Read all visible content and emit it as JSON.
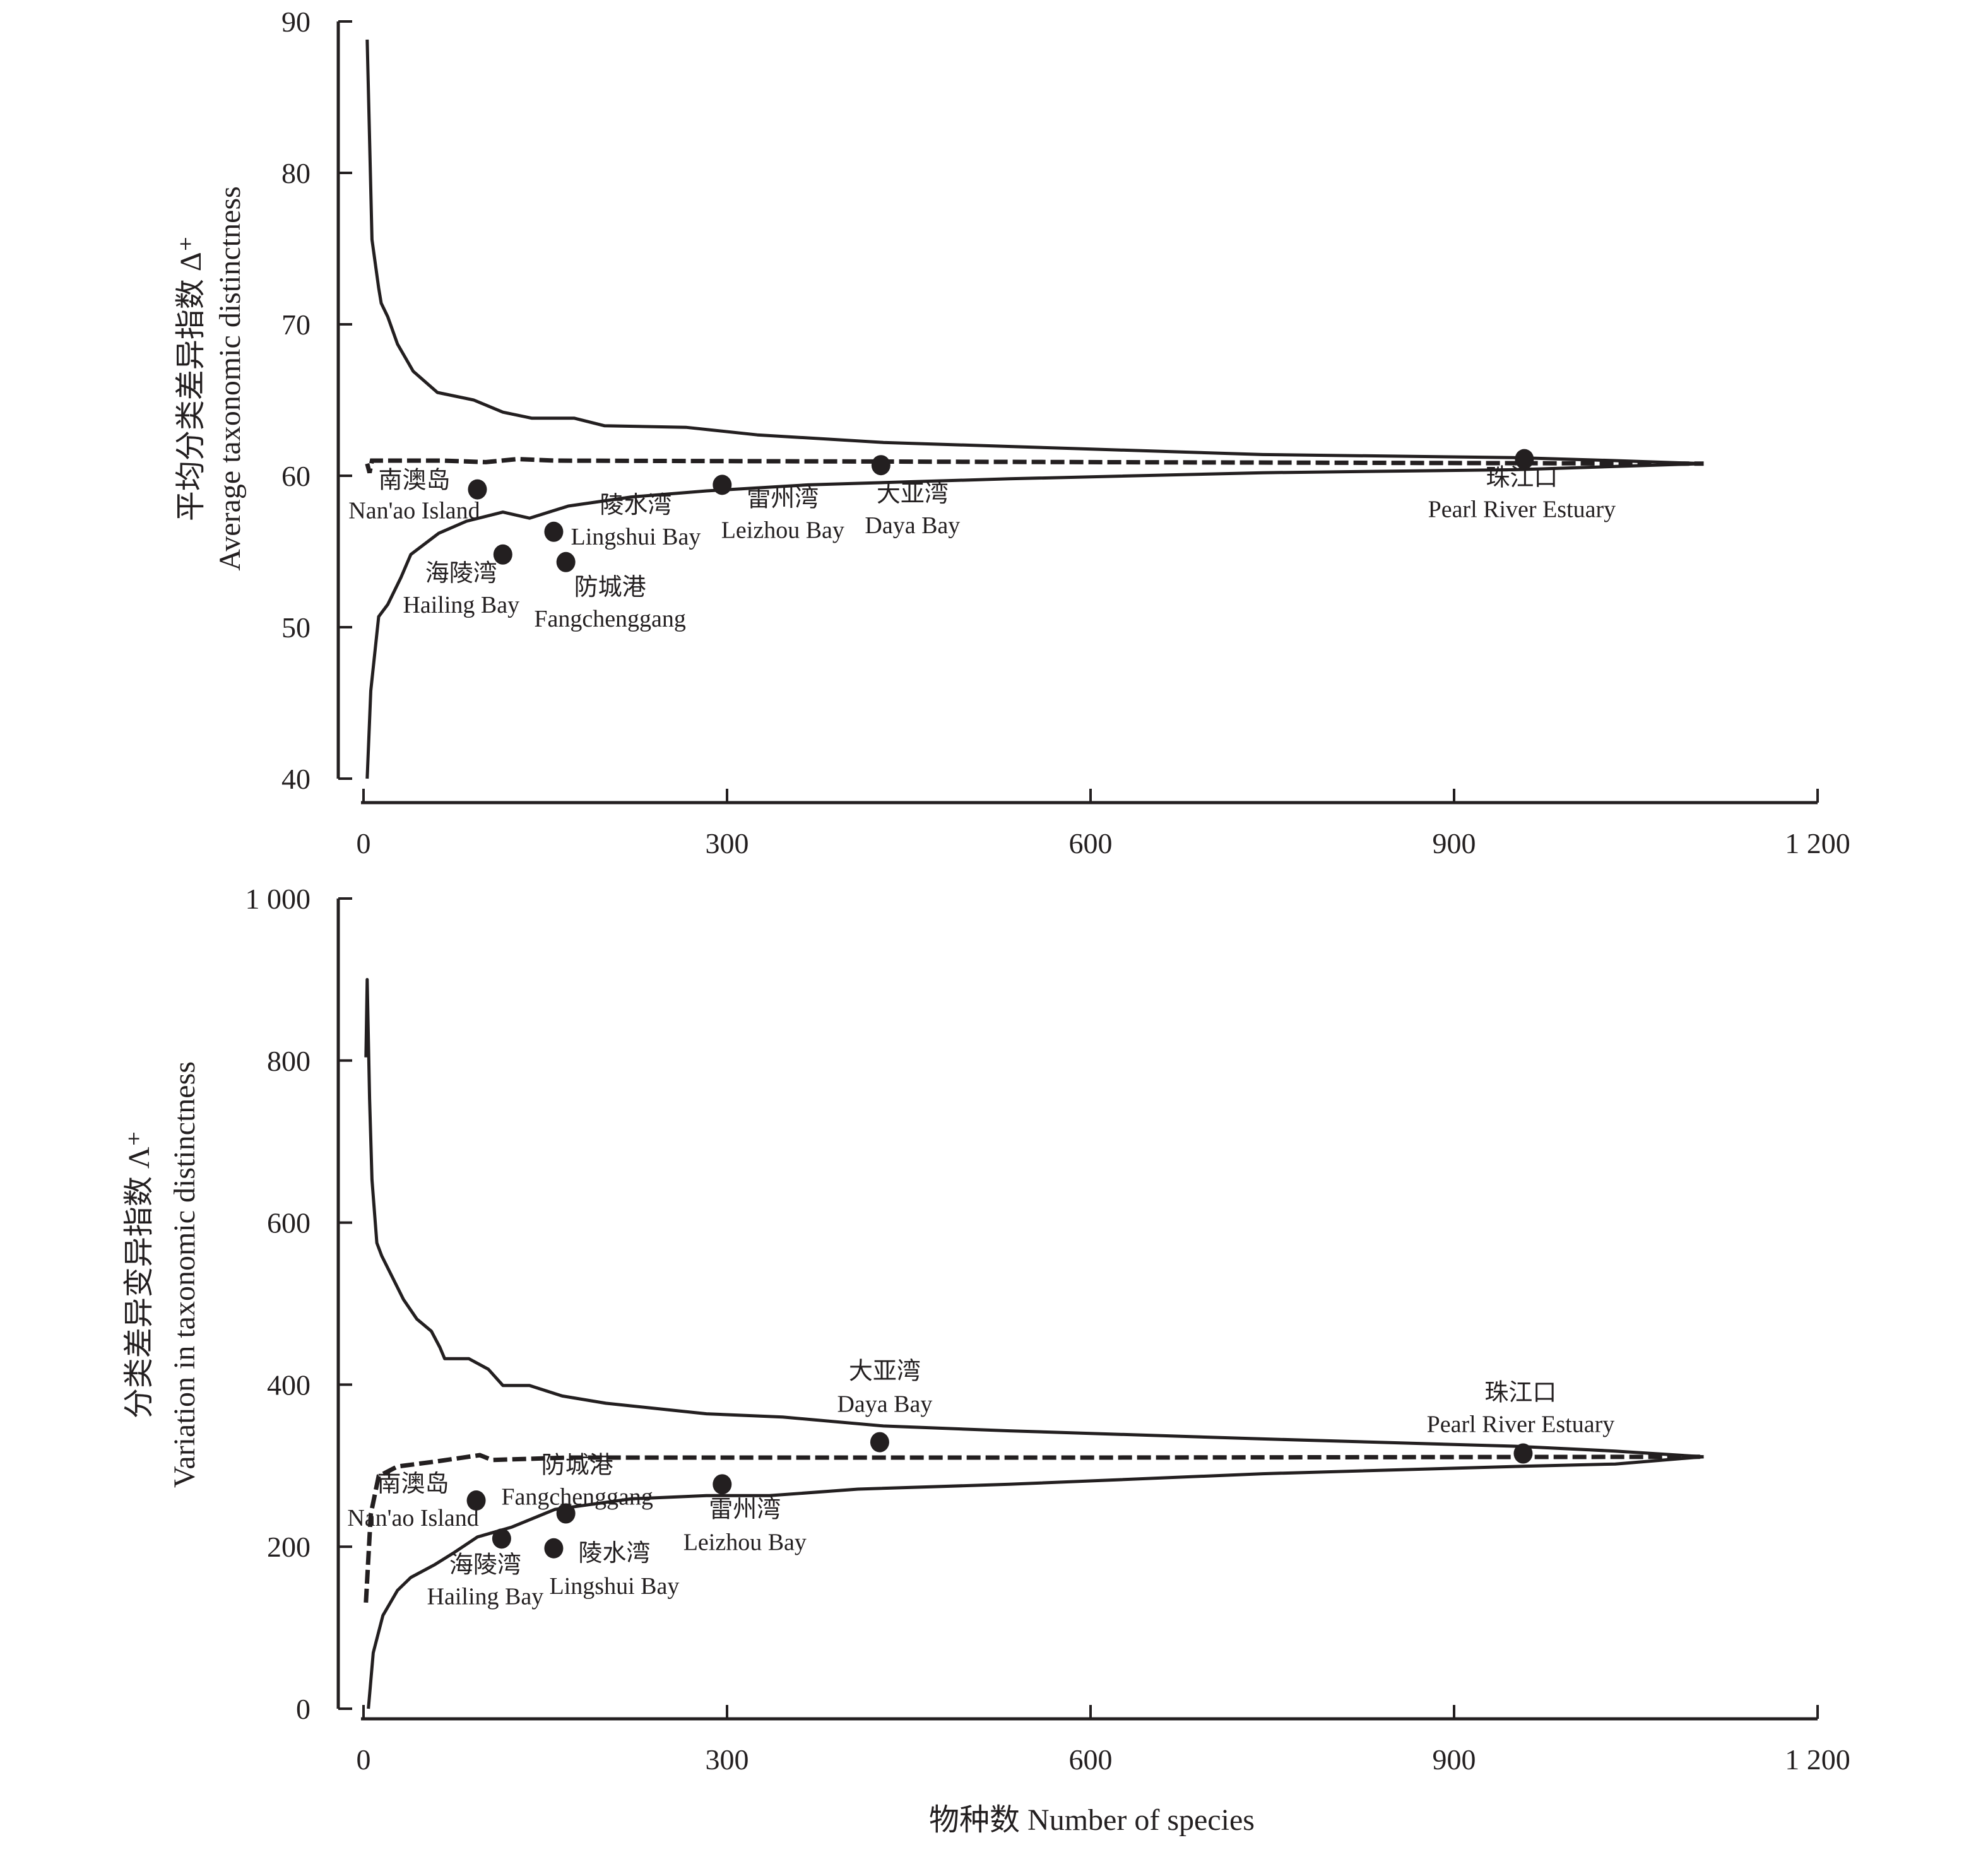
{
  "chart_data": [
    {
      "type": "line",
      "panel": "top",
      "title": "",
      "xlabel": "",
      "ylabel_cn": "平均分类差异指数 Δ⁺",
      "ylabel_en": "Average taxonomic distinctness",
      "xlim": [
        0,
        1200
      ],
      "ylim": [
        40,
        90
      ],
      "x_ticks": [
        0,
        300,
        600,
        900,
        1200
      ],
      "x_tick_labels": [
        "0",
        "300",
        "600",
        "900",
        "1 200"
      ],
      "y_ticks": [
        40,
        50,
        60,
        70,
        80,
        90
      ],
      "y_tick_labels": [
        "40",
        "50",
        "60",
        "70",
        "80",
        "90"
      ],
      "grid": false,
      "series": [
        {
          "name": "upper-95%-limit",
          "style": "solid",
          "points": [
            [
              3,
              88.8
            ],
            [
              7,
              75.6
            ],
            [
              12.5,
              72.4
            ],
            [
              14.6,
              71.4
            ],
            [
              20,
              70.5
            ],
            [
              28,
              68.7
            ],
            [
              41,
              66.9
            ],
            [
              61,
              65.5
            ],
            [
              91,
              65.0
            ],
            [
              115,
              64.2
            ],
            [
              139,
              63.8
            ],
            [
              174,
              63.8
            ],
            [
              199,
              63.3
            ],
            [
              266,
              63.2
            ],
            [
              325,
              62.7
            ],
            [
              429,
              62.2
            ],
            [
              585,
              61.8
            ],
            [
              742,
              61.4
            ],
            [
              950,
              61.2
            ],
            [
              1033,
              61.0
            ],
            [
              1106,
              60.8
            ]
          ]
        },
        {
          "name": "mean",
          "style": "dashed",
          "points": [
            [
              3,
              60.8
            ],
            [
              5,
              60.2
            ],
            [
              7,
              61.0
            ],
            [
              65,
              61.0
            ],
            [
              101,
              60.9
            ],
            [
              127,
              61.1
            ],
            [
              158,
              61.0
            ],
            [
              600,
              60.9
            ],
            [
              1106,
              60.8
            ]
          ]
        },
        {
          "name": "lower-95%-limit",
          "style": "solid",
          "points": [
            [
              3,
              40.0
            ],
            [
              6,
              45.8
            ],
            [
              12.5,
              50.7
            ],
            [
              20,
              51.5
            ],
            [
              31,
              53.3
            ],
            [
              39,
              54.8
            ],
            [
              62,
              56.2
            ],
            [
              85,
              57.0
            ],
            [
              115,
              57.6
            ],
            [
              137,
              57.2
            ],
            [
              169,
              58.0
            ],
            [
              221,
              58.6
            ],
            [
              283,
              59.0
            ],
            [
              367,
              59.4
            ],
            [
              533,
              59.8
            ],
            [
              742,
              60.2
            ],
            [
              950,
              60.4
            ],
            [
              1106,
              60.8
            ]
          ]
        }
      ],
      "sites": [
        {
          "name_cn": "南澳岛",
          "name_en": "Nan'ao Island",
          "x": 94,
          "y": 59.1,
          "label_pos": "left-below"
        },
        {
          "name_cn": "海陵湾",
          "name_en": "Hailing Bay",
          "x": 115,
          "y": 54.8,
          "label_pos": "below-left"
        },
        {
          "name_cn": "陵水湾",
          "name_en": "Lingshui Bay",
          "x": 157,
          "y": 56.3,
          "label_pos": "right-above"
        },
        {
          "name_cn": "防城港",
          "name_en": "Fangchenggang",
          "x": 167,
          "y": 54.3,
          "label_pos": "below"
        },
        {
          "name_cn": "雷州湾",
          "name_en": "Leizhou Bay",
          "x": 296,
          "y": 59.4,
          "label_pos": "below-right"
        },
        {
          "name_cn": "大亚湾",
          "name_en": "Daya Bay",
          "x": 427,
          "y": 60.7,
          "label_pos": "below-right"
        },
        {
          "name_cn": "珠江口",
          "name_en": "Pearl River Estuary",
          "x": 958,
          "y": 61.1,
          "label_pos": "below"
        }
      ]
    },
    {
      "type": "line",
      "panel": "bottom",
      "title": "",
      "xlabel": "物种数 Number of species",
      "ylabel_cn": "分类差异变异指数 Λ⁺",
      "ylabel_en": "Variation in taxonomic distinctness",
      "xlim": [
        0,
        1200
      ],
      "ylim": [
        0,
        1000
      ],
      "x_ticks": [
        0,
        300,
        600,
        900,
        1200
      ],
      "x_tick_labels": [
        "0",
        "300",
        "600",
        "900",
        "1 200"
      ],
      "y_ticks": [
        0,
        200,
        400,
        600,
        800,
        1000
      ],
      "y_tick_labels": [
        "0",
        "200",
        "400",
        "600",
        "800",
        "1 000"
      ],
      "grid": false,
      "series": [
        {
          "name": "upper-95%-limit",
          "style": "solid",
          "points": [
            [
              2,
              804
            ],
            [
              3,
              900
            ],
            [
              5,
              753
            ],
            [
              7,
              653
            ],
            [
              11,
              575
            ],
            [
              15,
              559
            ],
            [
              33,
              505
            ],
            [
              44,
              481
            ],
            [
              56,
              466
            ],
            [
              63,
              446
            ],
            [
              67,
              432
            ],
            [
              87,
              432
            ],
            [
              103,
              419
            ],
            [
              115,
              399
            ],
            [
              137,
              399
            ],
            [
              164,
              386
            ],
            [
              200,
              377
            ],
            [
              283,
              364
            ],
            [
              346,
              360
            ],
            [
              429,
              349
            ],
            [
              533,
              343
            ],
            [
              742,
              333
            ],
            [
              950,
              324
            ],
            [
              1033,
              318
            ],
            [
              1106,
              311
            ]
          ]
        },
        {
          "name": "mean",
          "style": "dashed",
          "points": [
            [
              2,
              131
            ],
            [
              6,
              240
            ],
            [
              12.5,
              287
            ],
            [
              28,
              299
            ],
            [
              59,
              305
            ],
            [
              96,
              313
            ],
            [
              106,
              307
            ],
            [
              169,
              310
            ],
            [
              600,
              310
            ],
            [
              1106,
              311
            ]
          ]
        },
        {
          "name": "lower-95%-limit",
          "style": "solid",
          "points": [
            [
              4,
              0
            ],
            [
              8,
              69
            ],
            [
              16,
              115
            ],
            [
              28,
              146
            ],
            [
              39,
              162
            ],
            [
              59,
              178
            ],
            [
              75,
              193
            ],
            [
              94,
              212
            ],
            [
              122,
              224
            ],
            [
              158,
              246
            ],
            [
              221,
              259
            ],
            [
              283,
              263
            ],
            [
              335,
              263
            ],
            [
              408,
              271
            ],
            [
              533,
              277
            ],
            [
              742,
              290
            ],
            [
              950,
              299
            ],
            [
              1033,
              302
            ],
            [
              1106,
              311
            ]
          ]
        }
      ],
      "sites": [
        {
          "name_cn": "南澳岛",
          "name_en": "Nan'ao Island",
          "x": 93,
          "y": 257,
          "label_pos": "left"
        },
        {
          "name_cn": "海陵湾",
          "name_en": "Hailing Bay",
          "x": 114,
          "y": 210,
          "label_pos": "below"
        },
        {
          "name_cn": "防城港",
          "name_en": "Fangchenggang",
          "x": 167,
          "y": 241,
          "label_pos": "above"
        },
        {
          "name_cn": "陵水湾",
          "name_en": "Lingshui Bay",
          "x": 157,
          "y": 198,
          "label_pos": "right-below"
        },
        {
          "name_cn": "雷州湾",
          "name_en": "Leizhou Bay",
          "x": 296,
          "y": 277,
          "label_pos": "below"
        },
        {
          "name_cn": "大亚湾",
          "name_en": "Daya Bay",
          "x": 426,
          "y": 329,
          "label_pos": "above"
        },
        {
          "name_cn": "珠江口",
          "name_en": "Pearl River Estuary",
          "x": 957,
          "y": 315,
          "label_pos": "above"
        }
      ]
    }
  ]
}
